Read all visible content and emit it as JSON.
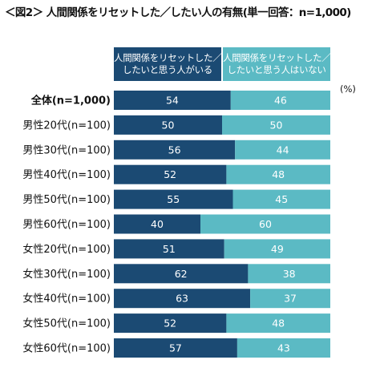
{
  "title": "＜図2＞ 人間関係をリセットした／したい人の有無(単一回答：n=1,000)",
  "unit": "(%)",
  "colors": {
    "series1": "#1b4a73",
    "series2": "#5bbac4",
    "label_on_dark": "#ffffff",
    "label_on_light": "#ffffff"
  },
  "legend": [
    {
      "line1": "人間関係をリセットした／",
      "line2": "したいと思う人がいる"
    },
    {
      "line1": "人間関係をリセットした／",
      "line2": "したいと思う人はいない"
    }
  ],
  "chart_data": {
    "type": "bar",
    "orientation": "horizontal-stacked-100",
    "title": "＜図2＞ 人間関係をリセットした／したい人の有無(単一回答：n=1,000)",
    "unit": "(%)",
    "categories": [
      "全体(n=1,000)",
      "男性20代(n=100)",
      "男性30代(n=100)",
      "男性40代(n=100)",
      "男性50代(n=100)",
      "男性60代(n=100)",
      "女性20代(n=100)",
      "女性30代(n=100)",
      "女性40代(n=100)",
      "女性50代(n=100)",
      "女性60代(n=100)"
    ],
    "series": [
      {
        "name": "人間関係をリセットした／したいと思う人がいる",
        "values": [
          54,
          50,
          56,
          52,
          55,
          40,
          51,
          62,
          63,
          52,
          57
        ]
      },
      {
        "name": "人間関係をリセットした／したいと思う人はいない",
        "values": [
          46,
          50,
          44,
          48,
          45,
          60,
          49,
          38,
          37,
          48,
          43
        ]
      }
    ],
    "xlim": [
      0,
      100
    ],
    "grid": false,
    "legend_position": "top"
  }
}
